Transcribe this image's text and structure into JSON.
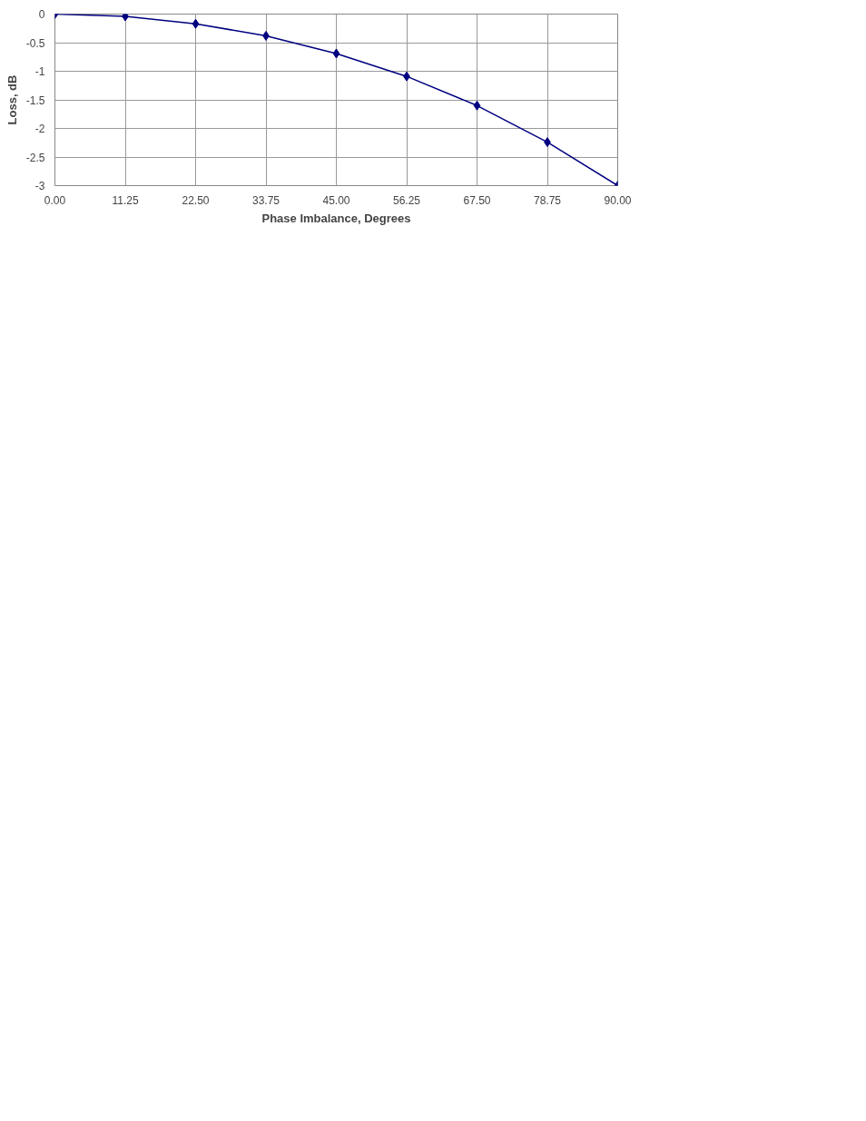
{
  "chart_data": {
    "type": "line",
    "xlabel": "Phase Imbalance, Degrees",
    "ylabel": "Loss, dB",
    "x": [
      0,
      11.25,
      22.5,
      33.75,
      45,
      56.25,
      67.5,
      78.75,
      90
    ],
    "series": [
      {
        "color": "#000080",
        "values": [
          0,
          -0.04,
          -0.17,
          -0.38,
          -0.69,
          -1.09,
          -1.6,
          -2.24,
          -3
        ]
      }
    ],
    "xlim": [
      0,
      90
    ],
    "xticks": [
      {
        "value": 0,
        "label": "0.00"
      },
      {
        "value": 11.25,
        "label": "11.25"
      },
      {
        "value": 22.5,
        "label": "22.50"
      },
      {
        "value": 33.75,
        "label": "33.75"
      },
      {
        "value": 45,
        "label": "45.00"
      },
      {
        "value": 56.25,
        "label": "56.25"
      },
      {
        "value": 67.5,
        "label": "67.50"
      },
      {
        "value": 78.75,
        "label": "78.75"
      },
      {
        "value": 90,
        "label": "90.00"
      }
    ],
    "ylim": [
      -3,
      0
    ],
    "yticks": [
      0,
      -0.5,
      -1,
      -1.5,
      -2,
      -2.5,
      -3
    ],
    "grid": true,
    "marker": "diamond",
    "line_style": "solid"
  }
}
